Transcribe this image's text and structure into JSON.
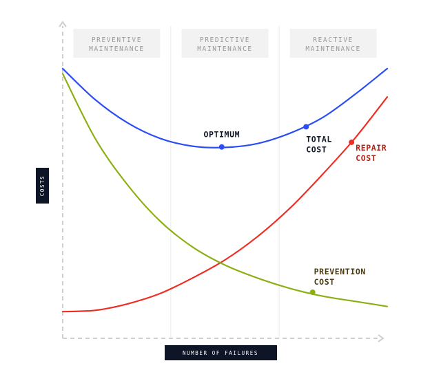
{
  "chart_data": {
    "type": "line",
    "title": "",
    "xlabel": "NUMBER OF FAILURES",
    "ylabel": "COSTS",
    "xlim": [
      0,
      100
    ],
    "ylim": [
      0,
      100
    ],
    "grid": false,
    "regions": [
      {
        "line1": "PREVENTIVE",
        "line2": "MAINTENANCE",
        "x_start": 0,
        "x_end": 33.3
      },
      {
        "line1": "PREDICTIVE",
        "line2": "MAINTENANCE",
        "x_start": 33.3,
        "x_end": 66.7
      },
      {
        "line1": "REACTIVE",
        "line2": "MAINTENANCE",
        "x_start": 66.7,
        "x_end": 100
      }
    ],
    "series": [
      {
        "name": "TOTAL COST",
        "color": "#2b4df5",
        "x": [
          0,
          10,
          20,
          30,
          40,
          50,
          60,
          70,
          80,
          90,
          100
        ],
        "y": [
          99,
          87,
          78,
          72,
          69,
          68.5,
          70,
          74,
          80,
          89,
          99
        ]
      },
      {
        "name": "REPAIR COST",
        "color": "#ee2e24",
        "x": [
          0,
          10,
          20,
          30,
          40,
          50,
          60,
          70,
          80,
          90,
          100
        ],
        "y": [
          5,
          5.5,
          8,
          12,
          18,
          25,
          34,
          45,
          58,
          72,
          88
        ]
      },
      {
        "name": "PREVENTION COST",
        "color": "#8caf14",
        "x": [
          0,
          10,
          20,
          30,
          40,
          50,
          60,
          70,
          80,
          90,
          100
        ],
        "y": [
          97,
          72,
          54,
          40,
          30,
          23,
          18,
          14,
          11,
          9,
          7
        ]
      }
    ],
    "annotations": [
      {
        "label": "OPTIMUM",
        "series": 0,
        "x": 49,
        "y": 68.7
      },
      {
        "label_line1": "TOTAL",
        "label_line2": "COST",
        "series": 0,
        "x": 75,
        "y": 76.5
      },
      {
        "label_line1": "REPAIR",
        "label_line2": "COST",
        "series": 1,
        "x": 89,
        "y": 70.5
      },
      {
        "label_line1": "PREVENTION",
        "label_line2": "COST",
        "series": 2,
        "x": 77,
        "y": 12.5
      }
    ]
  }
}
